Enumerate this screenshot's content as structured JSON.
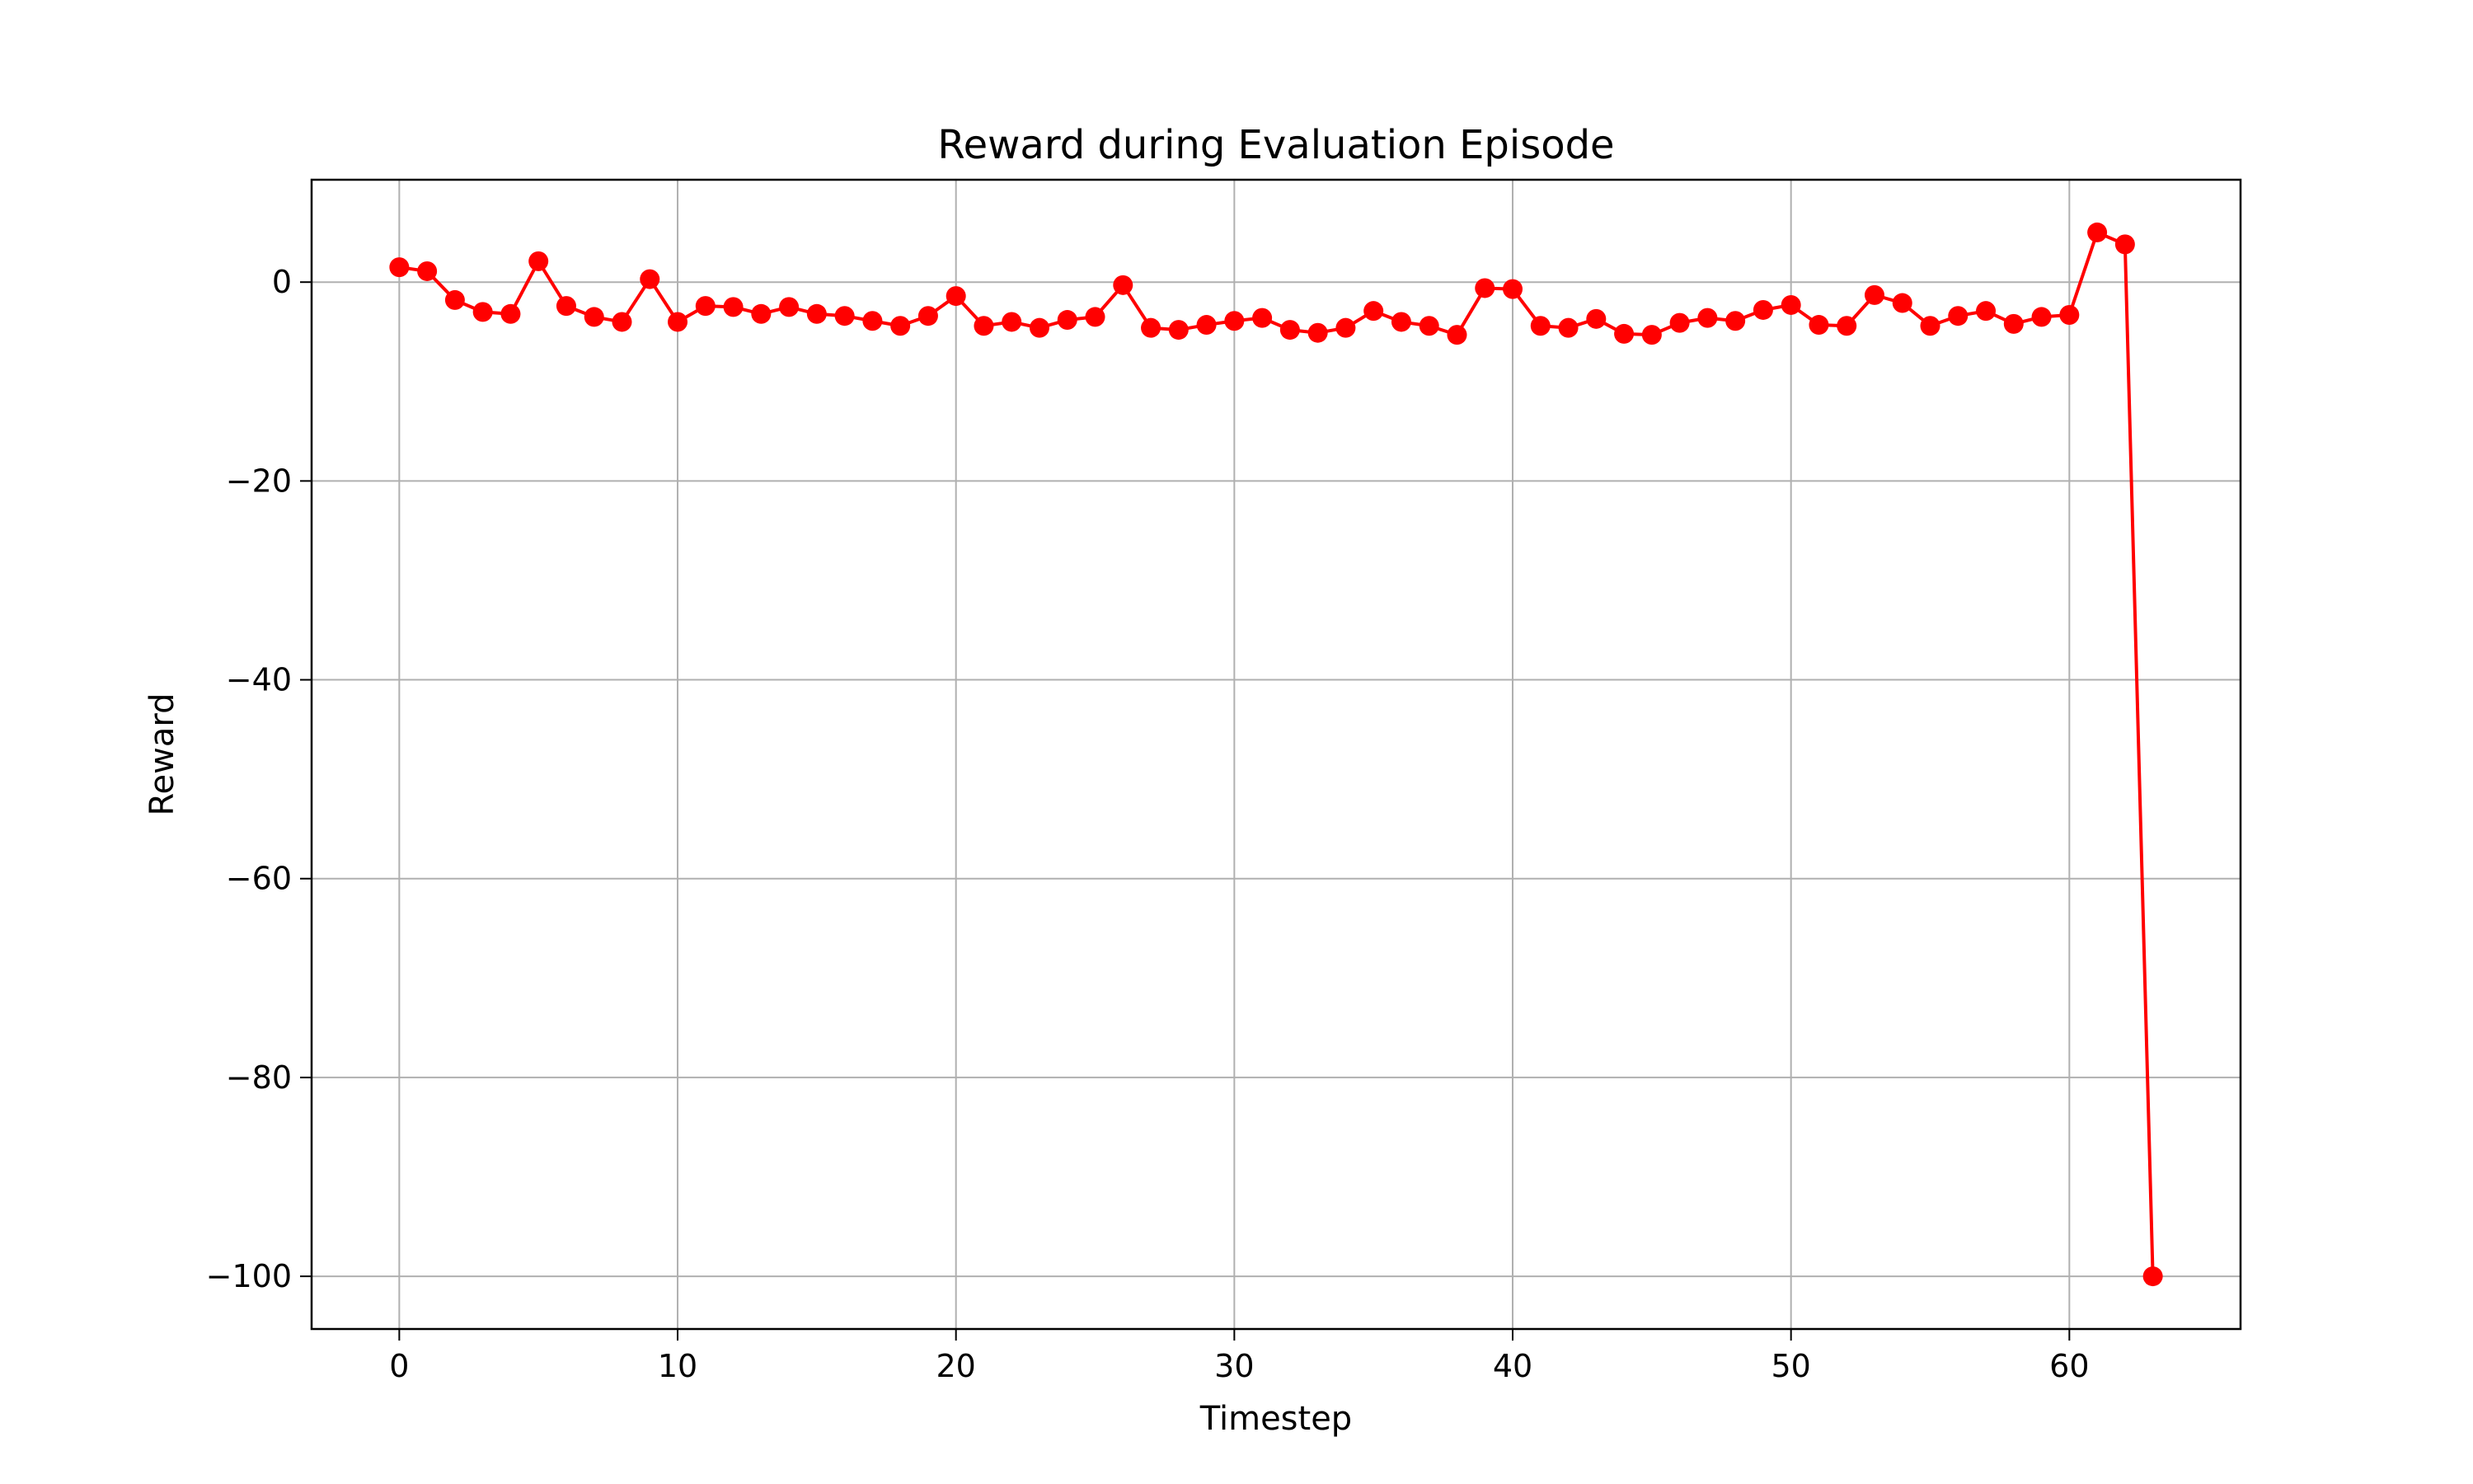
{
  "chart_data": {
    "type": "line",
    "title": "Reward during Evaluation Episode",
    "xlabel": "Timestep",
    "ylabel": "Reward",
    "xlim": [
      -3.15,
      66.15
    ],
    "ylim": [
      -105.3,
      10.3
    ],
    "xticks": [
      0,
      10,
      20,
      30,
      40,
      50,
      60
    ],
    "yticks": [
      0,
      -20,
      -40,
      -60,
      -80,
      -100
    ],
    "xtick_labels": [
      "0",
      "10",
      "20",
      "30",
      "40",
      "50",
      "60"
    ],
    "ytick_labels": [
      "0",
      "−20",
      "−40",
      "−60",
      "−80",
      "−100"
    ],
    "grid": true,
    "legend": "none",
    "series": [
      {
        "color": "#ff0000",
        "marker": "circle",
        "x": [
          0,
          1,
          2,
          3,
          4,
          5,
          6,
          7,
          8,
          9,
          10,
          11,
          12,
          13,
          14,
          15,
          16,
          17,
          18,
          19,
          20,
          21,
          22,
          23,
          24,
          25,
          26,
          27,
          28,
          29,
          30,
          31,
          32,
          33,
          34,
          35,
          36,
          37,
          38,
          39,
          40,
          41,
          42,
          43,
          44,
          45,
          46,
          47,
          48,
          49,
          50,
          51,
          52,
          53,
          54,
          55,
          56,
          57,
          58,
          59,
          60,
          61,
          62,
          63
        ],
        "values": [
          1.5,
          1.1,
          -1.8,
          -3.0,
          -3.2,
          2.1,
          -2.4,
          -3.5,
          -4.0,
          0.3,
          -4.0,
          -2.4,
          -2.5,
          -3.2,
          -2.5,
          -3.2,
          -3.4,
          -3.9,
          -4.4,
          -3.4,
          -1.4,
          -4.4,
          -4.0,
          -4.6,
          -3.8,
          -3.5,
          -0.3,
          -4.6,
          -4.8,
          -4.3,
          -3.9,
          -3.6,
          -4.8,
          -5.1,
          -4.6,
          -2.9,
          -4.0,
          -4.4,
          -5.3,
          -0.6,
          -0.7,
          -4.4,
          -4.6,
          -3.7,
          -5.2,
          -5.3,
          -4.1,
          -3.6,
          -3.9,
          -2.8,
          -2.3,
          -4.3,
          -4.4,
          -1.3,
          -2.1,
          -4.4,
          -3.4,
          -2.9,
          -4.2,
          -3.5,
          -3.3,
          5.0,
          3.8,
          -100.0
        ]
      }
    ]
  }
}
